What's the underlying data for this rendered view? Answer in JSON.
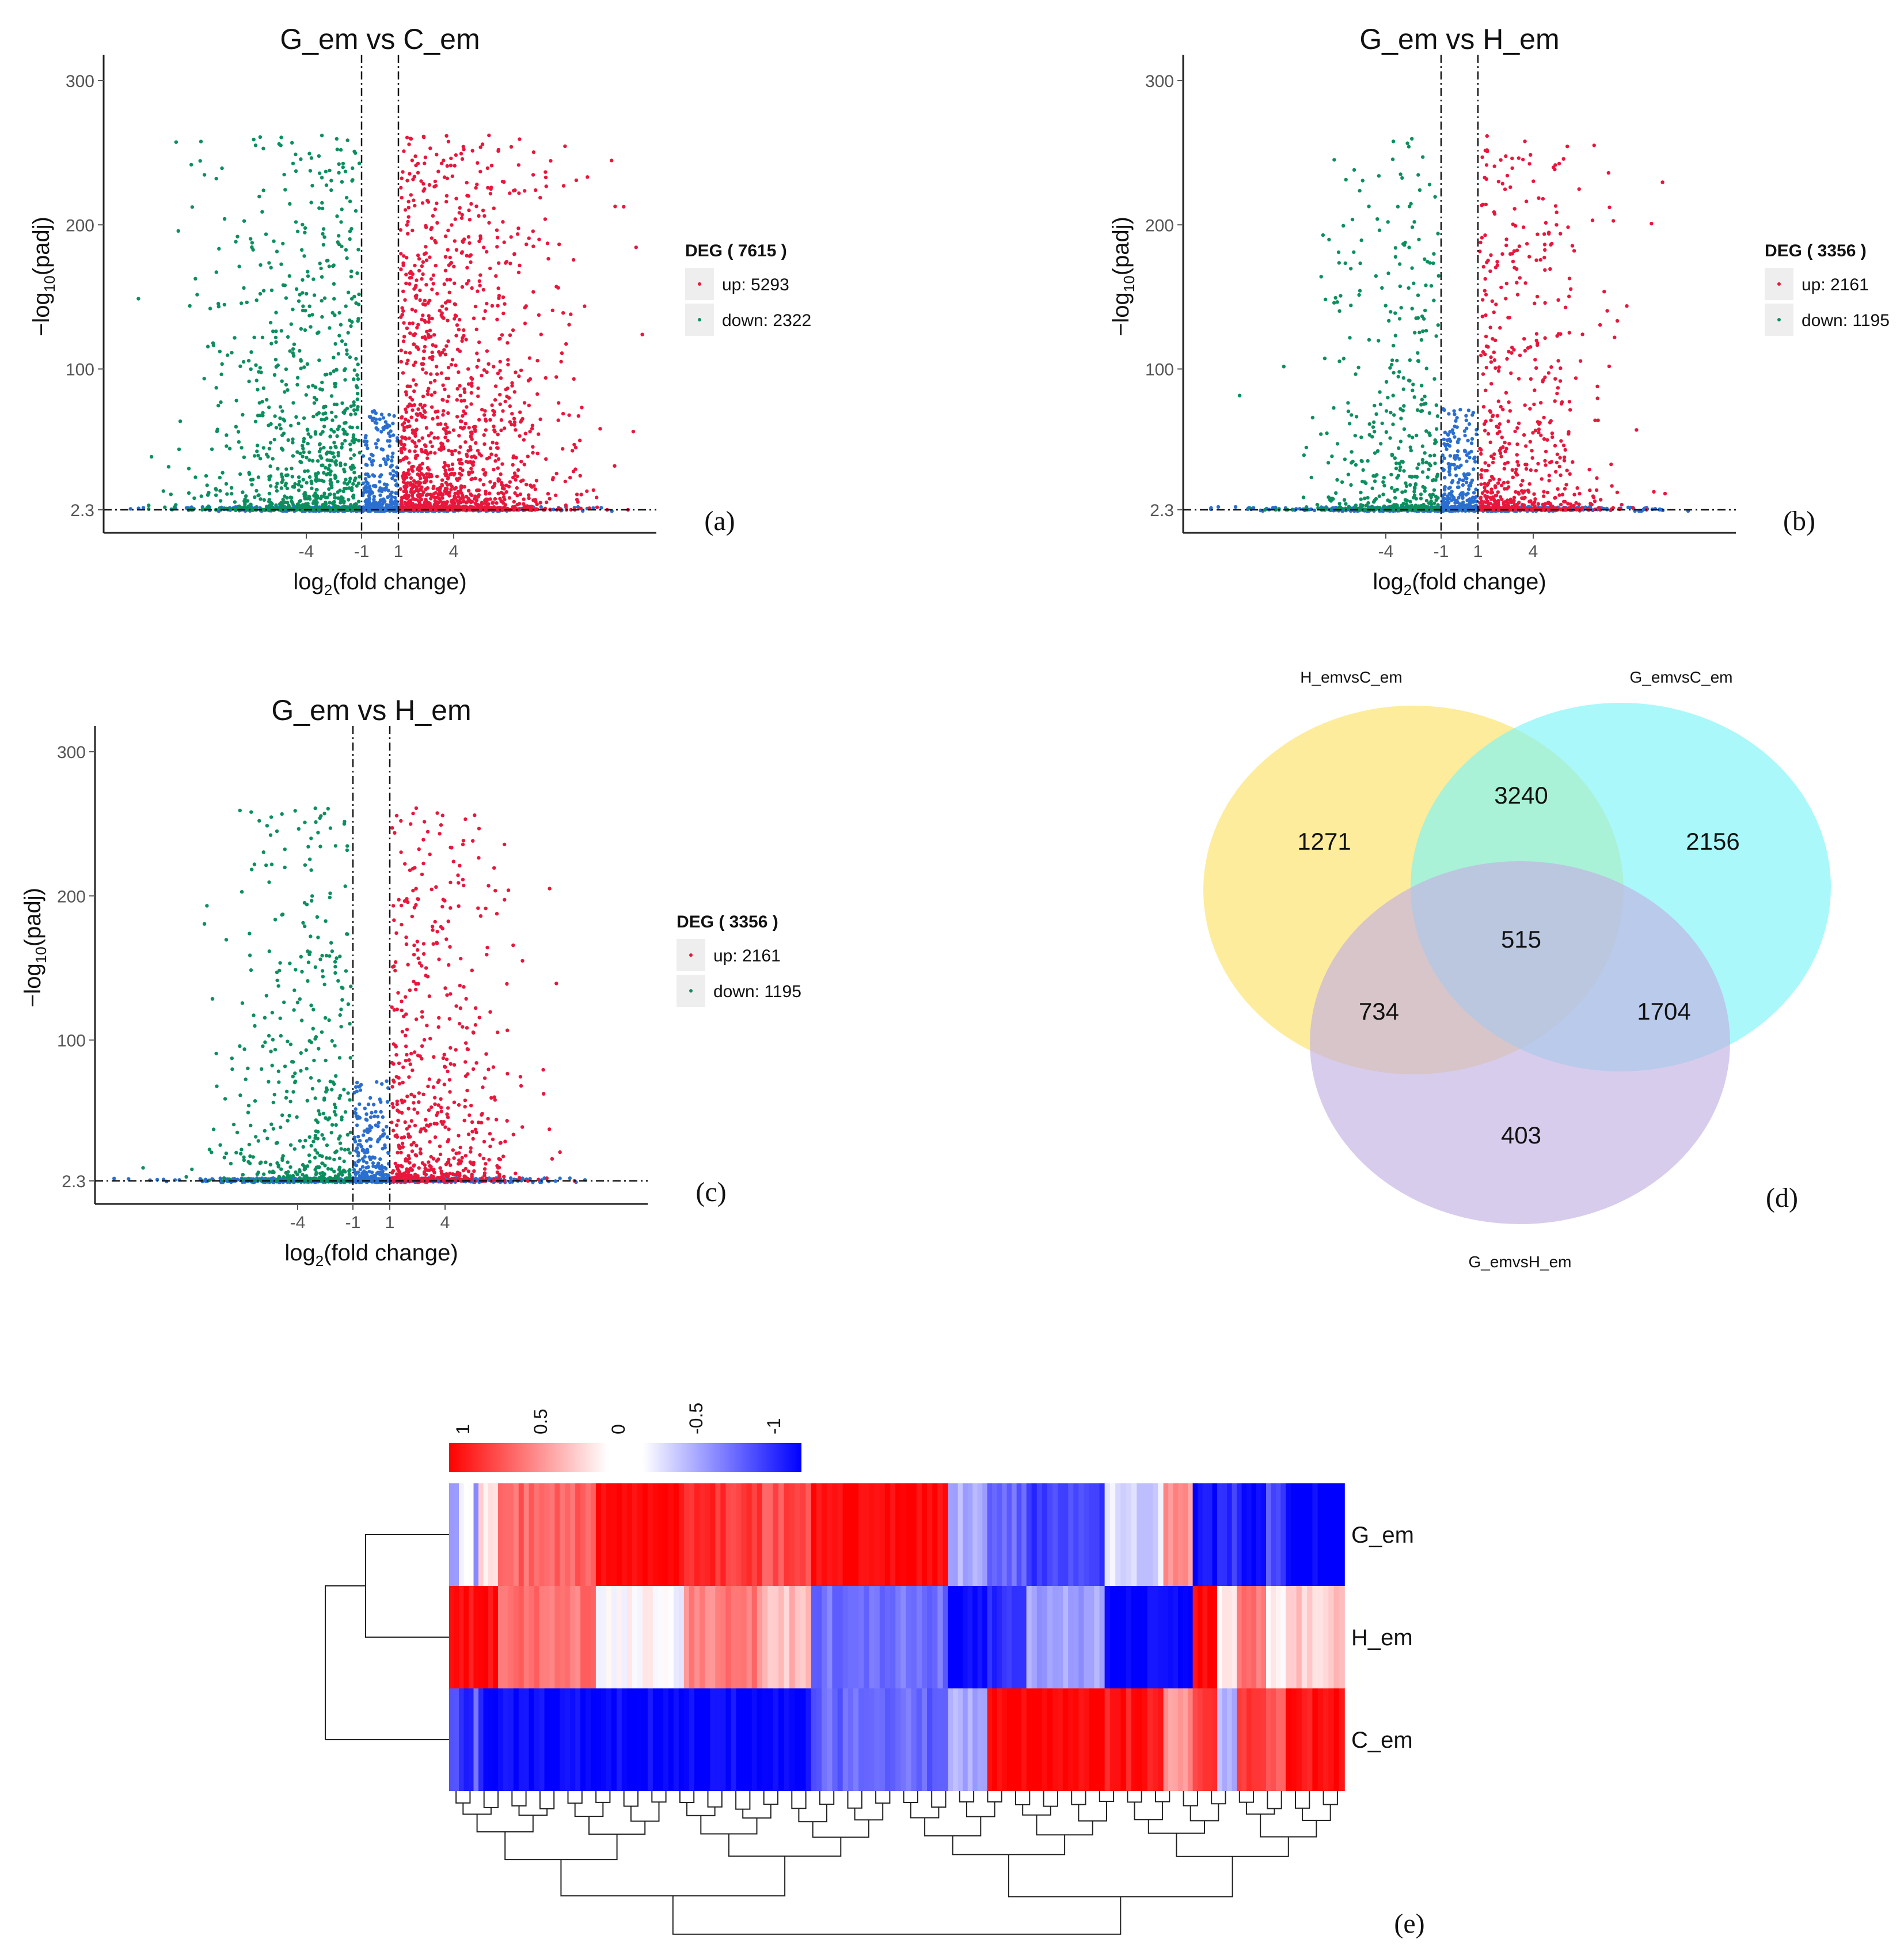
{
  "colors": {
    "up": "#e8173c",
    "down": "#0c8f5e",
    "ns": "#2a6fd0",
    "venn_a": "#fde98a",
    "venn_b": "#7cf4f8",
    "venn_c": "#c3b1e4",
    "heat_high": "#ff0000",
    "heat_mid": "#ffffff",
    "heat_low": "#0000ff"
  },
  "chart_data": [
    {
      "type": "scatter",
      "panel": "(a)",
      "title": "G_em  vs  C_em",
      "xlabel_main": "log",
      "xlabel_sub": "2",
      "xlabel_rest": "(fold change)",
      "ylabel_main": "−log",
      "ylabel_sub": "10",
      "ylabel_rest": "(padj)",
      "xticks": [
        "-4",
        "-1",
        "1",
        "4"
      ],
      "yticks": [
        "2.3",
        "100",
        "200",
        "300"
      ],
      "xlim": [
        -15,
        15
      ],
      "ylim": [
        2.3,
        310
      ],
      "thresholds": {
        "log2fc": [
          -1,
          1
        ],
        "neg_log10_padj": 2.3
      },
      "legend": {
        "title": "DEG ( 7615 )",
        "up": "up: 5293",
        "down": "down: 2322"
      },
      "counts": {
        "up": 5293,
        "down": 2322
      },
      "extent": {
        "down_min_x": -12,
        "up_max_x": 12
      }
    },
    {
      "type": "scatter",
      "panel": "(b)",
      "title": "G_em  vs  H_em",
      "xlabel_main": "log",
      "xlabel_sub": "2",
      "xlabel_rest": "(fold change)",
      "ylabel_main": "−log",
      "ylabel_sub": "10",
      "ylabel_rest": "(padj)",
      "xticks": [
        "-4",
        "-1",
        "1",
        "4"
      ],
      "yticks": [
        "2.3",
        "100",
        "200",
        "300"
      ],
      "xlim": [
        -15,
        15
      ],
      "ylim": [
        2.3,
        310
      ],
      "thresholds": {
        "log2fc": [
          -1,
          1
        ],
        "neg_log10_padj": 2.3
      },
      "legend": {
        "title": "DEG ( 3356 )",
        "up": "up: 2161",
        "down": "down: 1195"
      },
      "counts": {
        "up": 2161,
        "down": 1195
      },
      "extent": {
        "down_min_x": -10,
        "up_max_x": 10
      }
    },
    {
      "type": "scatter",
      "panel": "(c)",
      "title": "G_em  vs  H_em",
      "xlabel_main": "log",
      "xlabel_sub": "2",
      "xlabel_rest": "(fold change)",
      "ylabel_main": "−log",
      "ylabel_sub": "10",
      "ylabel_rest": "(padj)",
      "xticks": [
        "-4",
        "-1",
        "1",
        "4"
      ],
      "yticks": [
        "2.3",
        "100",
        "200",
        "300"
      ],
      "xlim": [
        -15,
        15
      ],
      "ylim": [
        2.3,
        310
      ],
      "thresholds": {
        "log2fc": [
          -1,
          1
        ],
        "neg_log10_padj": 2.3
      },
      "legend": {
        "title": "DEG ( 3356 )",
        "up": "up: 2161",
        "down": "down: 1195"
      },
      "counts": {
        "up": 2161,
        "down": 1195
      },
      "extent": {
        "down_min_x": -10,
        "up_max_x": 10
      }
    },
    {
      "type": "venn",
      "panel": "(d)",
      "sets": [
        "H_emvsC_em",
        "G_emvsC_em",
        "G_emvsH_em"
      ],
      "regions": {
        "H_only": 1271,
        "HG_only": 3240,
        "G_only": 2156,
        "all": 515,
        "HC_only": 734,
        "GC_only": 1704,
        "C_only": 403
      }
    },
    {
      "type": "heatmap",
      "panel": "(e)",
      "rows": [
        "G_em",
        "H_em",
        "C_em"
      ],
      "colorbar_ticks": [
        "1",
        "0.5",
        "0",
        "-0.5",
        "-1"
      ],
      "colorbar_range": [
        -1,
        1
      ],
      "column_blocks": [
        {
          "width": 2,
          "values": [
            -0.35,
            1.0,
            -0.7
          ]
        },
        {
          "width": 3,
          "values": [
            0.05,
            0.95,
            -0.9
          ]
        },
        {
          "width": 1,
          "values": [
            -0.5,
            0.9,
            -0.6
          ]
        },
        {
          "width": 4,
          "values": [
            0.1,
            1.0,
            -0.95
          ]
        },
        {
          "width": 20,
          "values": [
            0.6,
            0.55,
            -1.0
          ]
        },
        {
          "width": 18,
          "values": [
            1.0,
            0.0,
            -1.0
          ]
        },
        {
          "width": 16,
          "values": [
            0.8,
            0.5,
            -1.0
          ]
        },
        {
          "width": 10,
          "values": [
            0.7,
            0.25,
            -1.0
          ]
        },
        {
          "width": 28,
          "values": [
            1.0,
            -0.55,
            -0.6
          ]
        },
        {
          "width": 8,
          "values": [
            -0.3,
            -0.95,
            -0.3
          ]
        },
        {
          "width": 8,
          "values": [
            -0.6,
            -0.85,
            1.0
          ]
        },
        {
          "width": 16,
          "values": [
            -0.75,
            -0.35,
            1.0
          ]
        },
        {
          "width": 12,
          "values": [
            -0.15,
            -1.0,
            0.9
          ]
        },
        {
          "width": 6,
          "values": [
            0.45,
            -1.0,
            0.4
          ]
        },
        {
          "width": 5,
          "values": [
            -0.9,
            0.95,
            0.75
          ]
        },
        {
          "width": 4,
          "values": [
            -0.8,
            0.1,
            -0.3
          ]
        },
        {
          "width": 6,
          "values": [
            -0.95,
            0.55,
            0.8
          ]
        },
        {
          "width": 4,
          "values": [
            -0.7,
            0.05,
            0.6
          ]
        },
        {
          "width": 12,
          "values": [
            -1.0,
            0.2,
            0.95
          ]
        }
      ]
    }
  ]
}
